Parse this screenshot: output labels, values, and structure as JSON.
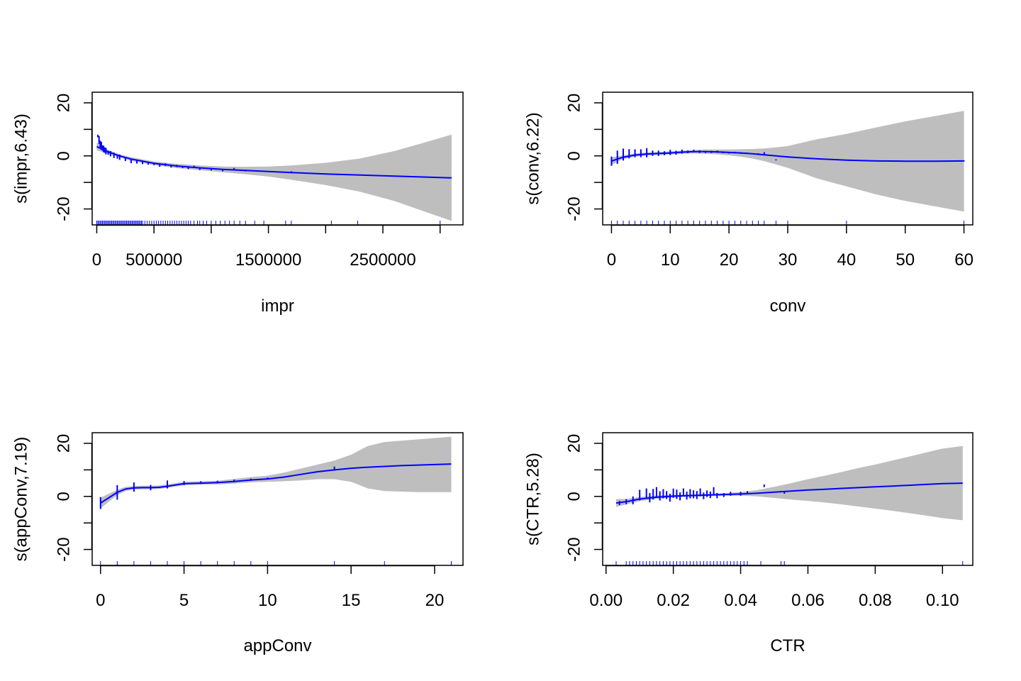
{
  "colors": {
    "line": "#0000ff",
    "band": "#bebebe",
    "rug": "#0000ff",
    "axis": "#000000"
  },
  "chart_data": [
    {
      "type": "line",
      "xlabel": "impr",
      "ylabel": "s(impr,6.43)",
      "xlim": [
        -40000,
        3200000
      ],
      "ylim": [
        -26,
        24
      ],
      "xticks": [
        0,
        500000,
        1000000,
        1500000,
        2000000,
        2500000,
        3000000
      ],
      "xtick_labels": [
        "0",
        "500000",
        "",
        "1500000",
        "",
        "2500000",
        ""
      ],
      "yticks": [
        -20,
        -10,
        0,
        10,
        20
      ],
      "ytick_labels": [
        "-20",
        "",
        "0",
        "",
        "20"
      ],
      "fit": {
        "x": [
          0,
          50000,
          100000,
          200000,
          300000,
          500000,
          700000,
          900000,
          1100000,
          1300000,
          1500000,
          1700000,
          2000000,
          2300000,
          2600000,
          2900000,
          3100000
        ],
        "y": [
          3.5,
          2.5,
          1.5,
          0,
          -1.2,
          -2.8,
          -3.8,
          -4.5,
          -5.1,
          -5.5,
          -5.9,
          -6.3,
          -6.8,
          -7.2,
          -7.6,
          -8.0,
          -8.3
        ],
        "lower": [
          2.0,
          1.5,
          0.8,
          -0.6,
          -1.9,
          -3.5,
          -4.6,
          -5.4,
          -6.2,
          -6.9,
          -7.8,
          -9.0,
          -11.0,
          -13.5,
          -17.0,
          -21.5,
          -24.5
        ],
        "upper": [
          5.0,
          3.5,
          2.2,
          0.6,
          -0.5,
          -2.1,
          -3.0,
          -3.6,
          -4.0,
          -4.1,
          -4.0,
          -3.6,
          -2.6,
          -1.0,
          1.8,
          5.5,
          8.0
        ]
      },
      "points": {
        "x": [
          10000,
          20000,
          30000,
          40000,
          50000,
          60000,
          70000,
          80000,
          100000,
          120000,
          150000,
          180000,
          200000,
          250000,
          300000,
          350000,
          400000,
          450000,
          500000,
          550000,
          600000,
          650000,
          700000,
          750000,
          800000,
          850000,
          900000,
          1000000,
          1100000,
          1200000,
          1300000,
          1700000
        ],
        "y": [
          7.5,
          6.0,
          4.5,
          3.8,
          3.0,
          2.6,
          2.2,
          1.8,
          1.2,
          0.8,
          0.2,
          -0.3,
          -0.5,
          -1.2,
          -2.0,
          -2.3,
          -2.5,
          -2.8,
          -3.0,
          -3.6,
          -3.3,
          -4.0,
          -3.8,
          -4.2,
          -4.5,
          -4.0,
          -5.0,
          -5.2,
          -5.5,
          -4.8,
          -5.6,
          -6.0
        ],
        "spread": [
          1.0,
          3.0,
          2.5,
          3.0,
          2.0,
          2.5,
          2.0,
          2.5,
          1.5,
          2.0,
          2.0,
          1.5,
          2.0,
          1.5,
          1.5,
          1.2,
          1.2,
          1.0,
          1.0,
          1.0,
          1.0,
          0.8,
          0.8,
          0.8,
          1.0,
          0.6,
          0.6,
          0.6,
          0.6,
          0.5,
          0.5,
          0.4
        ]
      },
      "rug": [
        0,
        10000,
        20000,
        30000,
        40000,
        50000,
        60000,
        70000,
        80000,
        90000,
        100000,
        110000,
        120000,
        130000,
        140000,
        150000,
        160000,
        170000,
        180000,
        190000,
        200000,
        210000,
        220000,
        230000,
        240000,
        250000,
        260000,
        270000,
        280000,
        290000,
        300000,
        310000,
        320000,
        330000,
        340000,
        350000,
        360000,
        370000,
        380000,
        390000,
        400000,
        420000,
        440000,
        460000,
        480000,
        500000,
        520000,
        540000,
        560000,
        580000,
        600000,
        620000,
        640000,
        660000,
        680000,
        700000,
        720000,
        740000,
        760000,
        780000,
        800000,
        820000,
        850000,
        880000,
        900000,
        930000,
        960000,
        1000000,
        1040000,
        1080000,
        1120000,
        1160000,
        1200000,
        1250000,
        1300000,
        1380000,
        1460000,
        1650000,
        1700000,
        2050000,
        2280000,
        3000000
      ]
    },
    {
      "type": "line",
      "xlabel": "conv",
      "ylabel": "s(conv,6.22)",
      "xlim": [
        -1.5,
        61.5
      ],
      "ylim": [
        -26,
        24
      ],
      "xticks": [
        0,
        10,
        20,
        30,
        40,
        50,
        60
      ],
      "xtick_labels": [
        "0",
        "10",
        "20",
        "30",
        "40",
        "50",
        "60"
      ],
      "yticks": [
        -20,
        -10,
        0,
        10,
        20
      ],
      "ytick_labels": [
        "-20",
        "",
        "0",
        "",
        "20"
      ],
      "fit": {
        "x": [
          0,
          1,
          2,
          4,
          6,
          8,
          10,
          12,
          14,
          16,
          18,
          20,
          22,
          24,
          26,
          28,
          30,
          35,
          40,
          45,
          50,
          55,
          60
        ],
        "y": [
          -2.0,
          -1.2,
          -0.5,
          0.3,
          0.7,
          0.9,
          1.1,
          1.4,
          1.6,
          1.6,
          1.5,
          1.3,
          1.1,
          0.8,
          0.4,
          0.0,
          -0.4,
          -1.1,
          -1.6,
          -1.9,
          -2.0,
          -2.0,
          -1.9
        ],
        "lower": [
          -3.5,
          -2.2,
          -1.2,
          -0.3,
          0.1,
          0.3,
          0.5,
          0.8,
          0.9,
          0.8,
          0.6,
          0.2,
          -0.3,
          -1.0,
          -2.0,
          -3.2,
          -4.5,
          -8.5,
          -11.5,
          -14.5,
          -17.0,
          -19.0,
          -21.0
        ],
        "upper": [
          -0.5,
          -0.2,
          0.2,
          0.9,
          1.3,
          1.5,
          1.7,
          2.0,
          2.3,
          2.4,
          2.4,
          2.4,
          2.5,
          2.6,
          2.8,
          3.2,
          3.7,
          6.3,
          8.3,
          10.7,
          13.0,
          15.0,
          17.0
        ]
      },
      "points": {
        "x": [
          0,
          1,
          2,
          3,
          4,
          5,
          6,
          7,
          8,
          9,
          10,
          11,
          12,
          13,
          14,
          15,
          16,
          17,
          18,
          19,
          20,
          21,
          22,
          23,
          24,
          25,
          26,
          28,
          30,
          40,
          60
        ],
        "y": [
          -2.0,
          -0.5,
          0.5,
          0.8,
          1.0,
          1.0,
          1.2,
          1.0,
          1.0,
          1.0,
          1.3,
          1.2,
          1.6,
          1.5,
          1.8,
          1.6,
          1.5,
          1.5,
          1.6,
          1.3,
          1.2,
          1.3,
          1.0,
          1.0,
          0.8,
          0.8,
          1.0,
          -1.5,
          -0.3,
          -1.6,
          -1.9
        ],
        "spread": [
          3.5,
          5.0,
          4.5,
          3.5,
          3.0,
          3.0,
          3.5,
          2.0,
          2.0,
          1.5,
          2.0,
          1.5,
          1.5,
          1.0,
          1.0,
          1.0,
          0.8,
          0.8,
          0.8,
          0.6,
          0.6,
          0.5,
          0.5,
          0.5,
          0.4,
          0.4,
          0.8,
          0.4,
          0.4,
          0.4,
          0.4
        ]
      },
      "rug": [
        0,
        1,
        2,
        3,
        4,
        5,
        6,
        7,
        8,
        9,
        10,
        11,
        12,
        13,
        14,
        15,
        16,
        17,
        18,
        19,
        20,
        21,
        22,
        23,
        24,
        25,
        26,
        28,
        30,
        40,
        60
      ]
    },
    {
      "type": "line",
      "xlabel": "appConv",
      "ylabel": "s(appConv,7.19)",
      "xlim": [
        -0.5,
        21.7
      ],
      "ylim": [
        -26,
        24
      ],
      "xticks": [
        0,
        5,
        10,
        15,
        20
      ],
      "xtick_labels": [
        "0",
        "5",
        "10",
        "15",
        "20"
      ],
      "yticks": [
        -20,
        -10,
        0,
        10,
        20
      ],
      "ytick_labels": [
        "-20",
        "",
        "0",
        "",
        "20"
      ],
      "fit": {
        "x": [
          0,
          0.5,
          1,
          1.5,
          2,
          2.5,
          3,
          3.5,
          4,
          5,
          6,
          7,
          8,
          9,
          10,
          11,
          12,
          13,
          14,
          15,
          16,
          17,
          18,
          19,
          20,
          21
        ],
        "y": [
          -2.5,
          -0.5,
          1.5,
          2.8,
          3.2,
          3.3,
          3.3,
          3.4,
          3.8,
          4.8,
          5.0,
          5.2,
          5.6,
          6.2,
          6.6,
          7.3,
          8.3,
          9.3,
          10.0,
          10.6,
          11.0,
          11.3,
          11.6,
          11.8,
          12.0,
          12.2
        ],
        "lower": [
          -4.5,
          -2.0,
          0.5,
          2.0,
          2.6,
          2.7,
          2.7,
          2.8,
          3.2,
          4.2,
          4.4,
          4.5,
          4.8,
          5.3,
          5.5,
          5.7,
          6.0,
          6.5,
          6.5,
          5.5,
          3.0,
          2.0,
          1.8,
          1.6,
          1.6,
          1.6
        ],
        "upper": [
          -0.5,
          1.0,
          2.5,
          3.6,
          3.9,
          4.0,
          4.0,
          4.1,
          4.5,
          5.5,
          5.7,
          5.9,
          6.6,
          7.3,
          7.8,
          9.0,
          10.5,
          12.0,
          13.5,
          15.7,
          19.0,
          20.5,
          21.0,
          21.5,
          22.0,
          22.5
        ]
      },
      "points": {
        "x": [
          0,
          1,
          2,
          3,
          4,
          5,
          6,
          7,
          8,
          9,
          10,
          14
        ],
        "y": [
          -2.5,
          1.5,
          3.5,
          3.3,
          4.5,
          5.0,
          5.2,
          5.4,
          5.8,
          6.3,
          6.8,
          10.5
        ],
        "spread": [
          4.5,
          5.5,
          3.5,
          2.0,
          3.0,
          1.5,
          1.0,
          1.0,
          1.0,
          0.8,
          0.6,
          1.5
        ]
      },
      "rug": [
        0,
        1,
        2,
        3,
        4,
        5,
        6,
        7,
        8,
        9,
        10,
        14,
        17,
        21
      ]
    },
    {
      "type": "line",
      "xlabel": "CTR",
      "ylabel": "s(CTR,5.28)",
      "xlim": [
        -0.001,
        0.109
      ],
      "ylim": [
        -26,
        24
      ],
      "xticks": [
        0,
        0.02,
        0.04,
        0.06,
        0.08,
        0.1
      ],
      "xtick_labels": [
        "0.00",
        "0.02",
        "0.04",
        "0.06",
        "0.08",
        "0.10"
      ],
      "yticks": [
        -20,
        -10,
        0,
        10,
        20
      ],
      "ytick_labels": [
        "-20",
        "",
        "0",
        "",
        "20"
      ],
      "fit": {
        "x": [
          0.003,
          0.006,
          0.01,
          0.015,
          0.02,
          0.025,
          0.03,
          0.035,
          0.04,
          0.045,
          0.05,
          0.055,
          0.06,
          0.065,
          0.07,
          0.075,
          0.08,
          0.085,
          0.09,
          0.095,
          0.1,
          0.106
        ],
        "y": [
          -2.5,
          -2.0,
          -1.0,
          -0.3,
          0.1,
          0.3,
          0.5,
          0.7,
          0.9,
          1.2,
          1.6,
          2.0,
          2.4,
          2.7,
          3.0,
          3.3,
          3.6,
          3.9,
          4.2,
          4.5,
          4.8,
          5.0
        ],
        "lower": [
          -4.0,
          -3.0,
          -1.8,
          -0.9,
          -0.4,
          -0.1,
          0.1,
          0.2,
          0.3,
          0.0,
          -0.6,
          -1.2,
          -1.7,
          -2.3,
          -3.0,
          -3.8,
          -4.6,
          -5.4,
          -6.3,
          -7.2,
          -8.2,
          -9.0
        ],
        "upper": [
          -1.0,
          -1.0,
          -0.2,
          0.3,
          0.6,
          0.7,
          0.9,
          1.2,
          1.6,
          2.4,
          3.6,
          5.0,
          6.5,
          7.8,
          9.2,
          10.7,
          12.0,
          13.5,
          15.0,
          16.5,
          18.0,
          19.0
        ]
      },
      "points": {
        "x": [
          0.004,
          0.006,
          0.008,
          0.01,
          0.012,
          0.013,
          0.014,
          0.015,
          0.016,
          0.017,
          0.018,
          0.019,
          0.02,
          0.021,
          0.022,
          0.023,
          0.024,
          0.025,
          0.026,
          0.027,
          0.028,
          0.029,
          0.03,
          0.031,
          0.032,
          0.033,
          0.035,
          0.037,
          0.04,
          0.042,
          0.047,
          0.053
        ],
        "y": [
          -2.5,
          -2.0,
          -1.5,
          0.5,
          1.0,
          -0.5,
          0.8,
          1.5,
          0.2,
          1.0,
          0.5,
          -0.5,
          1.2,
          0.8,
          0.0,
          1.5,
          0.3,
          1.0,
          0.8,
          0.5,
          1.5,
          0.2,
          1.0,
          0.6,
          2.0,
          0.3,
          0.5,
          1.0,
          1.0,
          1.5,
          4.0,
          1.5
        ],
        "spread": [
          1.5,
          2.0,
          3.0,
          4.0,
          4.0,
          3.5,
          4.0,
          4.0,
          3.5,
          3.5,
          3.0,
          3.0,
          3.5,
          3.5,
          3.0,
          3.0,
          3.0,
          3.5,
          3.0,
          3.0,
          3.0,
          2.5,
          2.5,
          2.5,
          3.0,
          2.0,
          1.5,
          1.5,
          1.5,
          1.0,
          1.0,
          1.0
        ]
      },
      "rug": [
        0.003,
        0.006,
        0.007,
        0.008,
        0.009,
        0.01,
        0.011,
        0.012,
        0.013,
        0.014,
        0.015,
        0.016,
        0.017,
        0.018,
        0.019,
        0.02,
        0.021,
        0.022,
        0.023,
        0.024,
        0.025,
        0.026,
        0.027,
        0.028,
        0.029,
        0.03,
        0.031,
        0.032,
        0.033,
        0.034,
        0.035,
        0.036,
        0.037,
        0.038,
        0.039,
        0.04,
        0.041,
        0.042,
        0.046,
        0.052,
        0.053,
        0.106
      ]
    }
  ]
}
